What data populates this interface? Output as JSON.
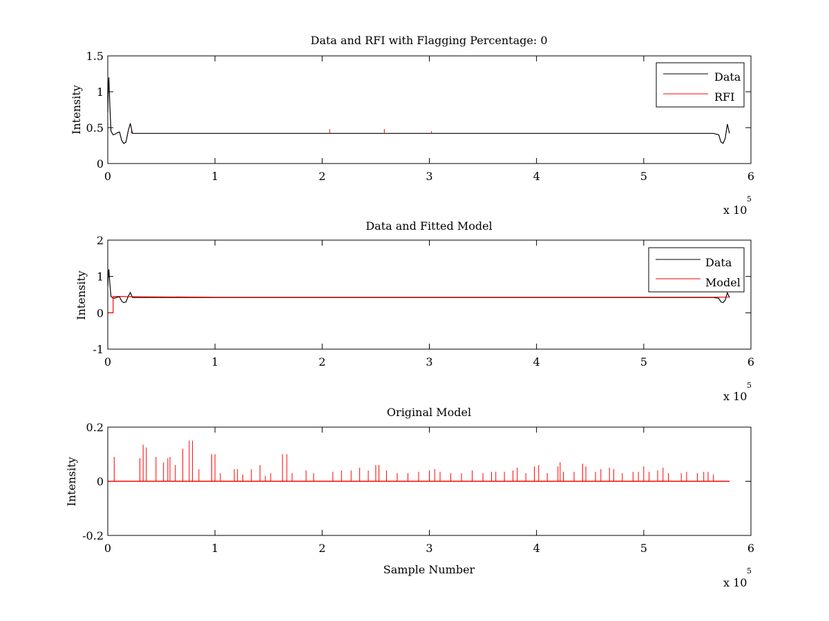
{
  "chart_data": [
    {
      "type": "line",
      "title": "Data and RFI with Flagging Percentage: 0",
      "xlabel": "",
      "ylabel": "Intensity",
      "xlim": [
        0,
        6
      ],
      "ylim": [
        0,
        1.5
      ],
      "xticks": [
        "0",
        "1",
        "2",
        "3",
        "4",
        "5",
        "6"
      ],
      "yticks": [
        "0",
        "0.5",
        "1",
        "1.5"
      ],
      "x_multiplier": {
        "base": "x 10",
        "exponent": "5"
      },
      "legend": {
        "placement": "top-right",
        "entries": [
          "Data",
          "RFI"
        ]
      },
      "grid": false,
      "series": [
        {
          "name": "Data",
          "color": "#000000",
          "x": [
            0,
            0.005,
            0.01,
            0.02,
            0.03,
            0.05,
            0.07,
            0.09,
            0.11,
            0.13,
            0.15,
            0.17,
            0.19,
            0.21,
            0.23,
            0.3,
            1,
            2,
            3,
            4,
            5,
            5.6,
            5.65,
            5.7,
            5.72,
            5.74,
            5.76,
            5.78,
            5.8
          ],
          "y": [
            0.72,
            1.05,
            1.2,
            0.78,
            0.45,
            0.4,
            0.41,
            0.43,
            0.44,
            0.32,
            0.28,
            0.3,
            0.45,
            0.56,
            0.42,
            0.42,
            0.42,
            0.42,
            0.42,
            0.42,
            0.42,
            0.42,
            0.42,
            0.4,
            0.3,
            0.28,
            0.35,
            0.55,
            0.42
          ]
        },
        {
          "name": "RFI",
          "color": "#ff0000",
          "x": [
            0.22,
            2.07,
            2.58,
            3.02
          ],
          "y": [
            0.46,
            0.48,
            0.48,
            0.45
          ]
        }
      ]
    },
    {
      "type": "line",
      "title": "Data and Fitted Model",
      "xlabel": "",
      "ylabel": "Intensity",
      "xlim": [
        0,
        6
      ],
      "ylim": [
        -1,
        2
      ],
      "xticks": [
        "0",
        "1",
        "2",
        "3",
        "4",
        "5",
        "6"
      ],
      "yticks": [
        "-1",
        "0",
        "1",
        "2"
      ],
      "x_multiplier": {
        "base": "x 10",
        "exponent": "5"
      },
      "legend": {
        "placement": "top-right",
        "entries": [
          "Data",
          "Model"
        ]
      },
      "grid": false,
      "series": [
        {
          "name": "Data",
          "color": "#000000",
          "x": [
            0,
            0.005,
            0.01,
            0.02,
            0.03,
            0.05,
            0.07,
            0.09,
            0.11,
            0.13,
            0.15,
            0.17,
            0.19,
            0.21,
            0.23,
            0.3,
            1,
            2,
            3,
            4,
            5,
            5.6,
            5.65,
            5.7,
            5.72,
            5.74,
            5.76,
            5.78,
            5.8
          ],
          "y": [
            0.72,
            1.05,
            1.2,
            0.78,
            0.45,
            0.4,
            0.41,
            0.43,
            0.44,
            0.32,
            0.28,
            0.3,
            0.45,
            0.56,
            0.42,
            0.42,
            0.42,
            0.42,
            0.42,
            0.42,
            0.42,
            0.42,
            0.42,
            0.4,
            0.3,
            0.28,
            0.35,
            0.55,
            0.42
          ]
        },
        {
          "name": "Model",
          "color": "#ff0000",
          "x": [
            0,
            0.05,
            0.05,
            0.12,
            0.3,
            1,
            2,
            3,
            4,
            5,
            5.8
          ],
          "y": [
            0,
            0,
            0.45,
            0.45,
            0.44,
            0.43,
            0.43,
            0.43,
            0.43,
            0.43,
            0.43
          ]
        }
      ]
    },
    {
      "type": "line",
      "title": "Original Model",
      "xlabel": "Sample Number",
      "ylabel": "Intensity",
      "xlim": [
        0,
        6
      ],
      "ylim": [
        -0.2,
        0.2
      ],
      "xticks": [
        "0",
        "1",
        "2",
        "3",
        "4",
        "5",
        "6"
      ],
      "yticks": [
        "-0.2",
        "0",
        "0.2"
      ],
      "x_multiplier": {
        "base": "x 10",
        "exponent": "5"
      },
      "grid": false,
      "series": [
        {
          "color": "#ff0000",
          "x": [
            0.06,
            0.3,
            0.33,
            0.36,
            0.45,
            0.52,
            0.56,
            0.58,
            0.63,
            0.7,
            0.76,
            0.79,
            0.85,
            0.97,
            1.0,
            1.05,
            1.18,
            1.21,
            1.26,
            1.34,
            1.42,
            1.47,
            1.52,
            1.63,
            1.67,
            1.72,
            1.85,
            1.92,
            2.1,
            2.18,
            2.27,
            2.35,
            2.43,
            2.5,
            2.53,
            2.6,
            2.7,
            2.8,
            2.9,
            3.0,
            3.05,
            3.1,
            3.2,
            3.3,
            3.4,
            3.5,
            3.58,
            3.62,
            3.7,
            3.78,
            3.82,
            3.9,
            3.98,
            4.02,
            4.1,
            4.2,
            4.22,
            4.25,
            4.35,
            4.43,
            4.46,
            4.55,
            4.6,
            4.68,
            4.72,
            4.8,
            4.9,
            4.95,
            5.0,
            5.05,
            5.13,
            5.18,
            5.23,
            5.35,
            5.4,
            5.5,
            5.56,
            5.6,
            5.65
          ],
          "y": [
            0.09,
            0.085,
            0.135,
            0.125,
            0.09,
            0.07,
            0.085,
            0.09,
            0.06,
            0.12,
            0.15,
            0.15,
            0.045,
            0.1,
            0.1,
            0.03,
            0.045,
            0.045,
            0.025,
            0.045,
            0.06,
            0.02,
            0.03,
            0.1,
            0.1,
            0.03,
            0.04,
            0.03,
            0.035,
            0.04,
            0.04,
            0.05,
            0.04,
            0.06,
            0.06,
            0.04,
            0.03,
            0.03,
            0.035,
            0.04,
            0.045,
            0.035,
            0.03,
            0.03,
            0.04,
            0.03,
            0.035,
            0.035,
            0.035,
            0.04,
            0.05,
            0.03,
            0.055,
            0.06,
            0.03,
            0.055,
            0.07,
            0.035,
            0.035,
            0.065,
            0.055,
            0.035,
            0.045,
            0.05,
            0.045,
            0.03,
            0.035,
            0.035,
            0.055,
            0.035,
            0.04,
            0.05,
            0.03,
            0.03,
            0.035,
            0.03,
            0.035,
            0.035,
            0.025
          ]
        }
      ]
    }
  ]
}
